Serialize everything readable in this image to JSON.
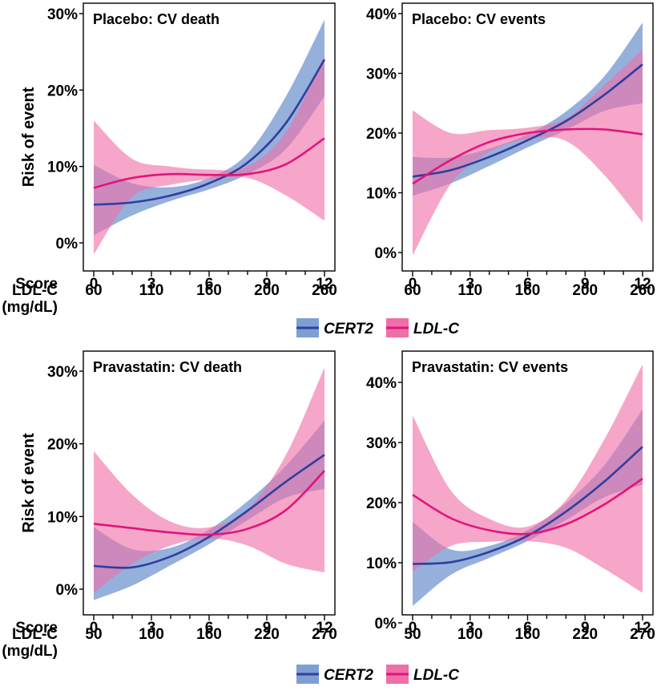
{
  "colors": {
    "cert2_line": "#2e3f9e",
    "cert2_band": "#7f9fd4",
    "ldl_line": "#e0157a",
    "ldl_band": "#ef6fa8"
  },
  "legends": [
    {
      "series": [
        {
          "name": "CERT2"
        },
        {
          "name": "LDL-C"
        }
      ]
    },
    {
      "series": [
        {
          "name": "CERT2"
        },
        {
          "name": "LDL-C"
        }
      ]
    }
  ],
  "chart_data": [
    {
      "type": "line",
      "title": "Placebo: CV death",
      "ylabel": "Risk of event",
      "x_row_labels": [
        "Score",
        "LDL-C",
        "(mg/dL)"
      ],
      "x_ticks": [
        0,
        3,
        6,
        9,
        12
      ],
      "x_tick_labels_score": [
        "0",
        "3",
        "6",
        "9",
        "12"
      ],
      "x_tick_labels_ldl": [
        "60",
        "110",
        "160",
        "200",
        "260"
      ],
      "xlim": [
        0,
        12
      ],
      "ylim": [
        -2,
        30
      ],
      "y_ticks": [
        0,
        10,
        20,
        30
      ],
      "y_tick_labels": [
        "0%",
        "10%",
        "20%",
        "30%"
      ],
      "series": [
        {
          "name": "CERT2",
          "x": [
            0,
            2,
            4,
            6,
            8,
            10,
            12
          ],
          "y": [
            5.0,
            5.3,
            6.2,
            7.8,
            10.5,
            15.7,
            24.0
          ],
          "lower": [
            1.0,
            3.6,
            5.5,
            7.0,
            9.0,
            12.3,
            19.2
          ],
          "upper": [
            10.2,
            7.8,
            7.3,
            8.5,
            11.7,
            19.2,
            29.2
          ]
        },
        {
          "name": "LDL-C",
          "x": [
            0,
            2,
            4,
            6,
            8,
            10,
            12
          ],
          "y": [
            7.2,
            8.5,
            9.0,
            8.9,
            9.0,
            10.3,
            13.7
          ],
          "lower": [
            -1.5,
            6.0,
            7.6,
            8.3,
            8.5,
            6.2,
            2.9
          ],
          "upper": [
            16.0,
            11.0,
            10.0,
            9.6,
            10.0,
            14.5,
            24.5
          ]
        }
      ]
    },
    {
      "type": "line",
      "title": "Placebo: CV events",
      "ylabel": "",
      "x_row_labels": [],
      "x_ticks": [
        0,
        3,
        6,
        9,
        12
      ],
      "x_tick_labels_score": [
        "0",
        "3",
        "6",
        "9",
        "12"
      ],
      "x_tick_labels_ldl": [
        "60",
        "110",
        "160",
        "200",
        "260"
      ],
      "xlim": [
        0,
        12
      ],
      "ylim": [
        -2,
        40
      ],
      "y_ticks": [
        0,
        10,
        20,
        30,
        40
      ],
      "y_tick_labels": [
        "0%",
        "10%",
        "20%",
        "30%",
        "40%"
      ],
      "series": [
        {
          "name": "CERT2",
          "x": [
            0,
            2,
            4,
            6,
            8,
            10,
            12
          ],
          "y": [
            12.7,
            13.8,
            16.0,
            18.8,
            22.0,
            26.4,
            31.5
          ],
          "lower": [
            9.5,
            11.6,
            14.5,
            17.6,
            20.5,
            23.7,
            25.0
          ],
          "upper": [
            16.0,
            15.9,
            17.4,
            19.8,
            23.6,
            29.5,
            38.5
          ]
        },
        {
          "name": "LDL-C",
          "x": [
            0,
            2,
            4,
            6,
            8,
            10,
            12
          ],
          "y": [
            11.5,
            15.5,
            18.5,
            20.0,
            20.6,
            20.6,
            19.8
          ],
          "lower": [
            -0.5,
            11.5,
            16.8,
            19.0,
            18.7,
            13.0,
            5.0
          ],
          "upper": [
            23.8,
            20.0,
            20.5,
            20.9,
            22.4,
            28.0,
            34.0
          ]
        }
      ]
    },
    {
      "type": "line",
      "title": "Pravastatin: CV death",
      "ylabel": "Risk of event",
      "x_row_labels": [
        "Score",
        "LDL-C",
        "(mg/dL)"
      ],
      "x_ticks": [
        0,
        3,
        6,
        9,
        12
      ],
      "x_tick_labels_score": [
        "0",
        "3",
        "6",
        "9",
        "12"
      ],
      "x_tick_labels_ldl": [
        "50",
        "100",
        "160",
        "220",
        "270"
      ],
      "xlim": [
        0,
        12
      ],
      "ylim": [
        -2,
        30
      ],
      "y_ticks": [
        0,
        10,
        20,
        30
      ],
      "y_tick_labels": [
        "0%",
        "10%",
        "20%",
        "30%"
      ],
      "series": [
        {
          "name": "CERT2",
          "x": [
            0,
            2,
            4,
            6,
            8,
            10,
            12
          ],
          "y": [
            3.2,
            3.0,
            4.5,
            7.2,
            10.8,
            14.8,
            18.5
          ],
          "lower": [
            -1.5,
            0.5,
            3.3,
            6.2,
            9.5,
            12.6,
            13.8
          ],
          "upper": [
            8.5,
            5.5,
            5.7,
            8.2,
            12.1,
            17.0,
            23.2
          ]
        },
        {
          "name": "LDL-C",
          "x": [
            0,
            2,
            4,
            6,
            8,
            10,
            12
          ],
          "y": [
            9.0,
            8.4,
            7.8,
            7.5,
            8.3,
            10.9,
            16.3
          ],
          "lower": [
            -0.5,
            3.5,
            6.0,
            7.0,
            6.0,
            3.5,
            2.3
          ],
          "upper": [
            19.0,
            13.0,
            9.3,
            8.5,
            11.0,
            18.5,
            30.5
          ]
        }
      ]
    },
    {
      "type": "line",
      "title": "Pravastatin: CV events",
      "ylabel": "",
      "x_row_labels": [],
      "x_ticks": [
        0,
        3,
        6,
        9,
        12
      ],
      "x_tick_labels_score": [
        "0",
        "3",
        "6",
        "9",
        "12"
      ],
      "x_tick_labels_ldl": [
        "50",
        "100",
        "160",
        "220",
        "270"
      ],
      "xlim": [
        0,
        12
      ],
      "ylim": [
        -2,
        45
      ],
      "y_ticks": [
        0,
        10,
        20,
        30,
        40
      ],
      "y_tick_labels": [
        "0%",
        "10%",
        "20%",
        "30%",
        "40%"
      ],
      "series": [
        {
          "name": "CERT2",
          "x": [
            0,
            2,
            4,
            6,
            8,
            10,
            12
          ],
          "y": [
            9.8,
            10.1,
            11.8,
            14.5,
            18.5,
            23.5,
            29.3
          ],
          "lower": [
            2.8,
            8.0,
            10.8,
            13.6,
            17.1,
            20.9,
            23.0
          ],
          "upper": [
            16.8,
            12.2,
            12.8,
            15.4,
            19.9,
            26.2,
            35.5
          ]
        },
        {
          "name": "LDL-C",
          "x": [
            0,
            2,
            4,
            6,
            8,
            10,
            12
          ],
          "y": [
            21.3,
            17.4,
            15.4,
            14.8,
            16.4,
            19.7,
            24.0
          ],
          "lower": [
            8.5,
            12.8,
            13.5,
            13.6,
            12.5,
            9.0,
            5.0
          ],
          "upper": [
            34.5,
            22.0,
            17.3,
            16.0,
            20.4,
            30.5,
            43.0
          ]
        }
      ]
    }
  ]
}
